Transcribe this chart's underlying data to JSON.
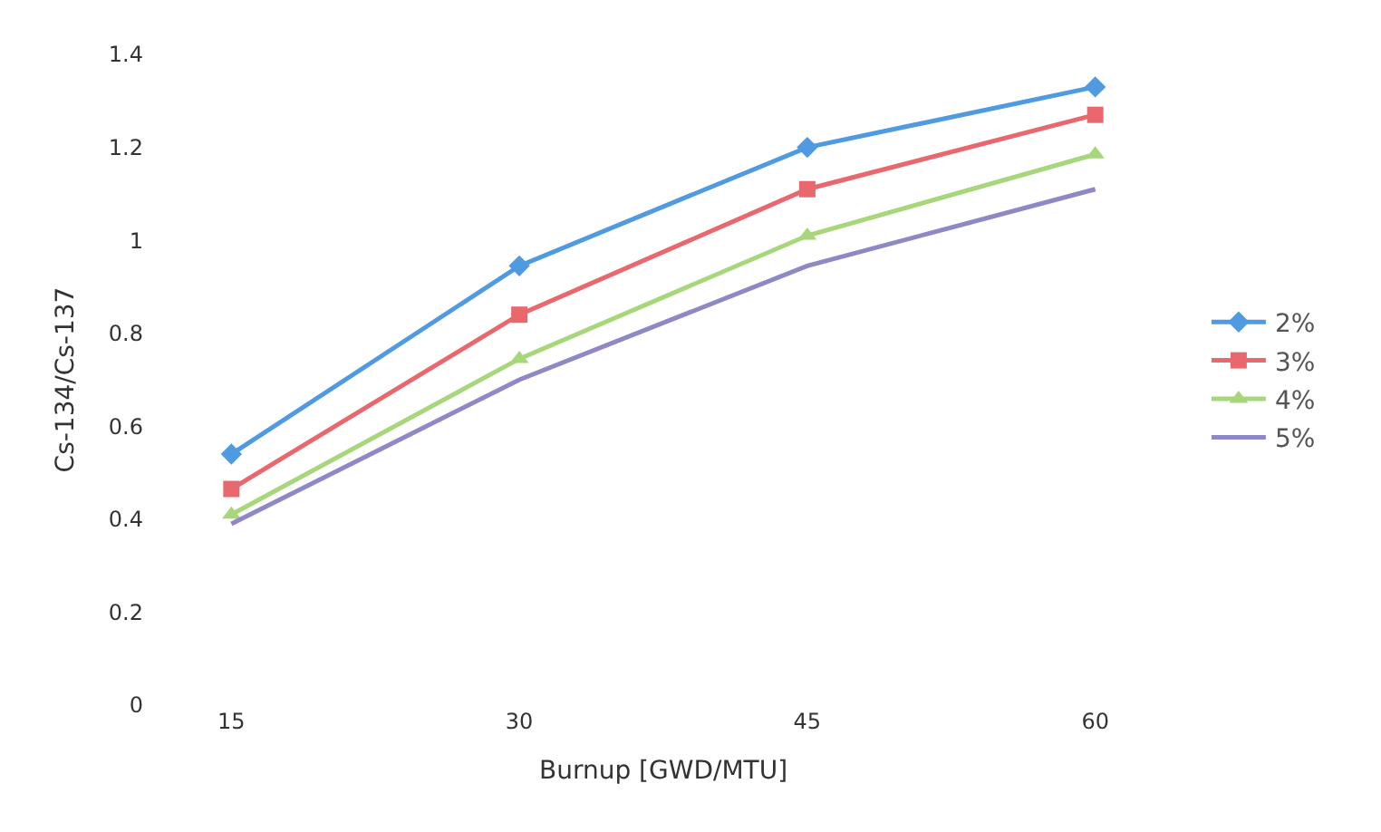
{
  "chart_data": {
    "type": "line",
    "xlabel": "Burnup [GWD/MTU]",
    "ylabel": "Cs-134/Cs-137",
    "categories": [
      "15",
      "30",
      "45",
      "60"
    ],
    "series": [
      {
        "name": "2%",
        "color": "#4f9ae0",
        "marker": "diamond",
        "values": [
          0.54,
          0.945,
          1.2,
          1.33
        ]
      },
      {
        "name": "3%",
        "color": "#e8686e",
        "marker": "square",
        "values": [
          0.465,
          0.84,
          1.11,
          1.27
        ]
      },
      {
        "name": "4%",
        "color": "#a8d67a",
        "marker": "triangle",
        "values": [
          0.41,
          0.745,
          1.01,
          1.185
        ]
      },
      {
        "name": "5%",
        "color": "#8e88c4",
        "marker": "none",
        "values": [
          0.39,
          0.7,
          0.945,
          1.11
        ]
      }
    ],
    "ylim": [
      0,
      1.4
    ],
    "yticks": [
      0,
      0.2,
      0.4,
      0.6,
      0.8,
      1,
      1.2,
      1.4
    ],
    "legend": "right"
  }
}
